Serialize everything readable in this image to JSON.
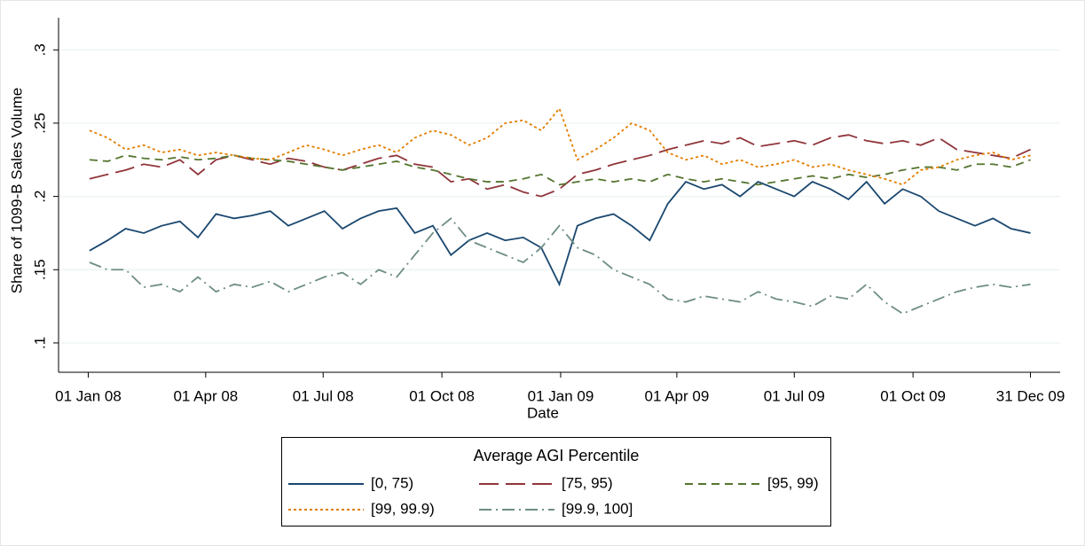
{
  "chart_data": {
    "type": "line",
    "y_label": "Share of 1099-B Sales Volume",
    "x_label": "Date",
    "legend_title": "Average AGI Percentile",
    "legend": "bottom",
    "grid": true,
    "x": [
      "2008-01-02",
      "2008-01-16",
      "2008-01-30",
      "2008-02-13",
      "2008-02-27",
      "2008-03-12",
      "2008-03-26",
      "2008-04-09",
      "2008-04-23",
      "2008-05-07",
      "2008-05-21",
      "2008-06-04",
      "2008-06-18",
      "2008-07-02",
      "2008-07-16",
      "2008-07-30",
      "2008-08-13",
      "2008-08-27",
      "2008-09-10",
      "2008-09-24",
      "2008-10-08",
      "2008-10-22",
      "2008-11-05",
      "2008-11-19",
      "2008-12-03",
      "2008-12-17",
      "2008-12-31",
      "2009-01-14",
      "2009-01-28",
      "2009-02-11",
      "2009-02-25",
      "2009-03-11",
      "2009-03-25",
      "2009-04-08",
      "2009-04-22",
      "2009-05-06",
      "2009-05-20",
      "2009-06-03",
      "2009-06-17",
      "2009-07-01",
      "2009-07-15",
      "2009-07-29",
      "2009-08-12",
      "2009-08-26",
      "2009-09-09",
      "2009-09-23",
      "2009-10-07",
      "2009-10-21",
      "2009-11-04",
      "2009-11-18",
      "2009-12-02",
      "2009-12-16",
      "2009-12-31"
    ],
    "xlim": [
      "2007-12-09",
      "2010-01-23"
    ],
    "xticks": [
      {
        "value": "2008-01-01",
        "label": "01 Jan 08"
      },
      {
        "value": "2008-04-01",
        "label": "01 Apr 08"
      },
      {
        "value": "2008-07-01",
        "label": "01 Jul 08"
      },
      {
        "value": "2008-10-01",
        "label": "01 Oct 08"
      },
      {
        "value": "2009-01-01",
        "label": "01 Jan 09"
      },
      {
        "value": "2009-04-01",
        "label": "01 Apr 09"
      },
      {
        "value": "2009-07-01",
        "label": "01 Jul 09"
      },
      {
        "value": "2009-10-01",
        "label": "01 Oct 09"
      },
      {
        "value": "2009-12-31",
        "label": "31 Dec 09"
      }
    ],
    "ylim": [
      0.08,
      0.328
    ],
    "yticks": [
      {
        "value": 0.1,
        "label": ".1"
      },
      {
        "value": 0.15,
        "label": ".15"
      },
      {
        "value": 0.2,
        "label": ".2"
      },
      {
        "value": 0.25,
        "label": ".25"
      },
      {
        "value": 0.3,
        "label": ".3"
      }
    ],
    "series": [
      {
        "name": "[0, 75)",
        "color": "#1a476f",
        "line_style": "solid",
        "values": [
          0.163,
          0.17,
          0.178,
          0.175,
          0.18,
          0.183,
          0.172,
          0.188,
          0.185,
          0.187,
          0.19,
          0.18,
          0.185,
          0.19,
          0.178,
          0.185,
          0.19,
          0.192,
          0.175,
          0.18,
          0.16,
          0.17,
          0.175,
          0.17,
          0.172,
          0.165,
          0.14,
          0.18,
          0.185,
          0.188,
          0.18,
          0.17,
          0.195,
          0.21,
          0.205,
          0.208,
          0.2,
          0.21,
          0.205,
          0.2,
          0.21,
          0.205,
          0.198,
          0.21,
          0.195,
          0.205,
          0.2,
          0.19,
          0.185,
          0.18,
          0.185,
          0.178,
          0.175
        ]
      },
      {
        "name": "[75, 95)",
        "color": "#90353b",
        "line_style": "longdash",
        "values": [
          0.212,
          0.215,
          0.218,
          0.222,
          0.22,
          0.225,
          0.215,
          0.225,
          0.228,
          0.225,
          0.222,
          0.226,
          0.224,
          0.22,
          0.218,
          0.222,
          0.226,
          0.228,
          0.222,
          0.22,
          0.21,
          0.212,
          0.205,
          0.208,
          0.203,
          0.2,
          0.205,
          0.215,
          0.218,
          0.222,
          0.225,
          0.228,
          0.232,
          0.235,
          0.238,
          0.236,
          0.24,
          0.234,
          0.236,
          0.238,
          0.235,
          0.24,
          0.242,
          0.238,
          0.236,
          0.238,
          0.235,
          0.24,
          0.232,
          0.23,
          0.228,
          0.226,
          0.232
        ]
      },
      {
        "name": "[95, 99)",
        "color": "#55752f",
        "line_style": "dash",
        "values": [
          0.225,
          0.224,
          0.228,
          0.226,
          0.225,
          0.227,
          0.225,
          0.226,
          0.228,
          0.226,
          0.225,
          0.224,
          0.222,
          0.22,
          0.218,
          0.22,
          0.222,
          0.224,
          0.22,
          0.218,
          0.215,
          0.212,
          0.21,
          0.21,
          0.212,
          0.215,
          0.208,
          0.21,
          0.212,
          0.21,
          0.212,
          0.21,
          0.215,
          0.212,
          0.21,
          0.212,
          0.21,
          0.208,
          0.21,
          0.212,
          0.214,
          0.212,
          0.215,
          0.213,
          0.215,
          0.218,
          0.22,
          0.22,
          0.218,
          0.222,
          0.222,
          0.22,
          0.225
        ]
      },
      {
        "name": "[99, 99.9)",
        "color": "#e37e00",
        "line_style": "dot",
        "values": [
          0.245,
          0.24,
          0.232,
          0.235,
          0.23,
          0.232,
          0.228,
          0.23,
          0.228,
          0.226,
          0.225,
          0.23,
          0.235,
          0.232,
          0.228,
          0.232,
          0.235,
          0.23,
          0.24,
          0.245,
          0.242,
          0.235,
          0.24,
          0.25,
          0.252,
          0.245,
          0.26,
          0.225,
          0.232,
          0.24,
          0.25,
          0.245,
          0.23,
          0.225,
          0.228,
          0.222,
          0.225,
          0.22,
          0.222,
          0.225,
          0.22,
          0.222,
          0.218,
          0.215,
          0.212,
          0.208,
          0.218,
          0.22,
          0.225,
          0.228,
          0.23,
          0.225,
          0.228
        ]
      },
      {
        "name": "[99.9, 100]",
        "color": "#6e8e84",
        "line_style": "dashdot",
        "values": [
          0.155,
          0.15,
          0.15,
          0.138,
          0.14,
          0.135,
          0.145,
          0.135,
          0.14,
          0.138,
          0.142,
          0.135,
          0.14,
          0.145,
          0.148,
          0.14,
          0.15,
          0.145,
          0.16,
          0.175,
          0.185,
          0.17,
          0.165,
          0.16,
          0.155,
          0.165,
          0.18,
          0.165,
          0.16,
          0.15,
          0.145,
          0.14,
          0.13,
          0.128,
          0.132,
          0.13,
          0.128,
          0.135,
          0.13,
          0.128,
          0.125,
          0.132,
          0.13,
          0.14,
          0.128,
          0.12,
          0.125,
          0.13,
          0.135,
          0.138,
          0.14,
          0.138,
          0.14
        ]
      }
    ]
  }
}
